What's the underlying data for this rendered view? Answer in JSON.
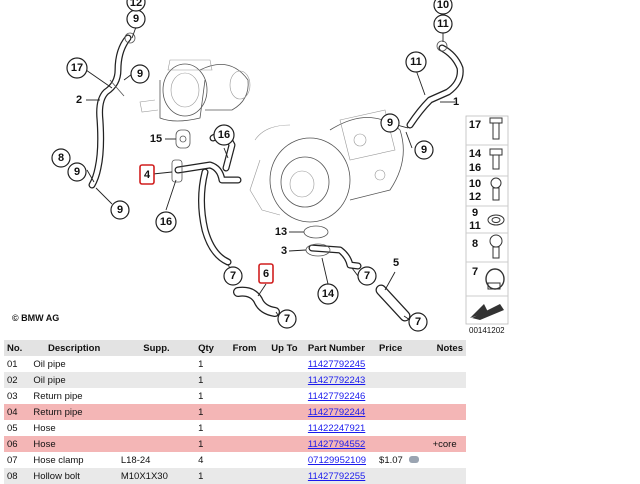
{
  "diagram": {
    "copyright": "© BMW AG",
    "figure_id": "00141202",
    "callouts": [
      "1",
      "2",
      "3",
      "4",
      "5",
      "6",
      "7",
      "8",
      "9",
      "10",
      "11",
      "12",
      "13",
      "14",
      "15",
      "16",
      "17"
    ],
    "sidebar_legend": [
      {
        "labels": [
          "17"
        ]
      },
      {
        "labels": [
          "14",
          "16"
        ]
      },
      {
        "labels": [
          "10",
          "12"
        ]
      },
      {
        "labels": [
          "9",
          "11"
        ]
      },
      {
        "labels": [
          "8"
        ]
      },
      {
        "labels": [
          "7"
        ]
      }
    ]
  },
  "table": {
    "headers": {
      "no": "No.",
      "description": "Description",
      "supp": "Supp.",
      "qty": "Qty",
      "from": "From",
      "upto": "Up To",
      "part_number": "Part Number",
      "price": "Price",
      "notes": "Notes"
    },
    "rows": [
      {
        "no": "01",
        "description": "Oil pipe",
        "supp": "",
        "qty": "1",
        "part_number": "11427792245",
        "price": "",
        "notes": ""
      },
      {
        "no": "02",
        "description": "Oil pipe",
        "supp": "",
        "qty": "1",
        "part_number": "11427792243",
        "price": "",
        "notes": ""
      },
      {
        "no": "03",
        "description": "Return pipe",
        "supp": "",
        "qty": "1",
        "part_number": "11427792246",
        "price": "",
        "notes": ""
      },
      {
        "no": "04",
        "description": "Return pipe",
        "supp": "",
        "qty": "1",
        "part_number": "11427792244",
        "price": "",
        "notes": ""
      },
      {
        "no": "05",
        "description": "Hose",
        "supp": "",
        "qty": "1",
        "part_number": "11422247921",
        "price": "",
        "notes": ""
      },
      {
        "no": "06",
        "description": "Hose",
        "supp": "",
        "qty": "1",
        "part_number": "11427794552",
        "price": "",
        "notes": "+core"
      },
      {
        "no": "07",
        "description": "Hose clamp",
        "supp": "L18-24",
        "qty": "4",
        "part_number": "07129952109",
        "price": "$1.07",
        "notes": ""
      },
      {
        "no": "08",
        "description": "Hollow bolt",
        "supp": "M10X1X30",
        "qty": "1",
        "part_number": "11427792255",
        "price": "",
        "notes": ""
      }
    ]
  },
  "colors": {
    "highlight": "#f4b6b6",
    "alt_row": "#e9e9e9",
    "header": "#e3e3e3",
    "link": "#1a1aee",
    "callout_red": "#d11f1f"
  }
}
